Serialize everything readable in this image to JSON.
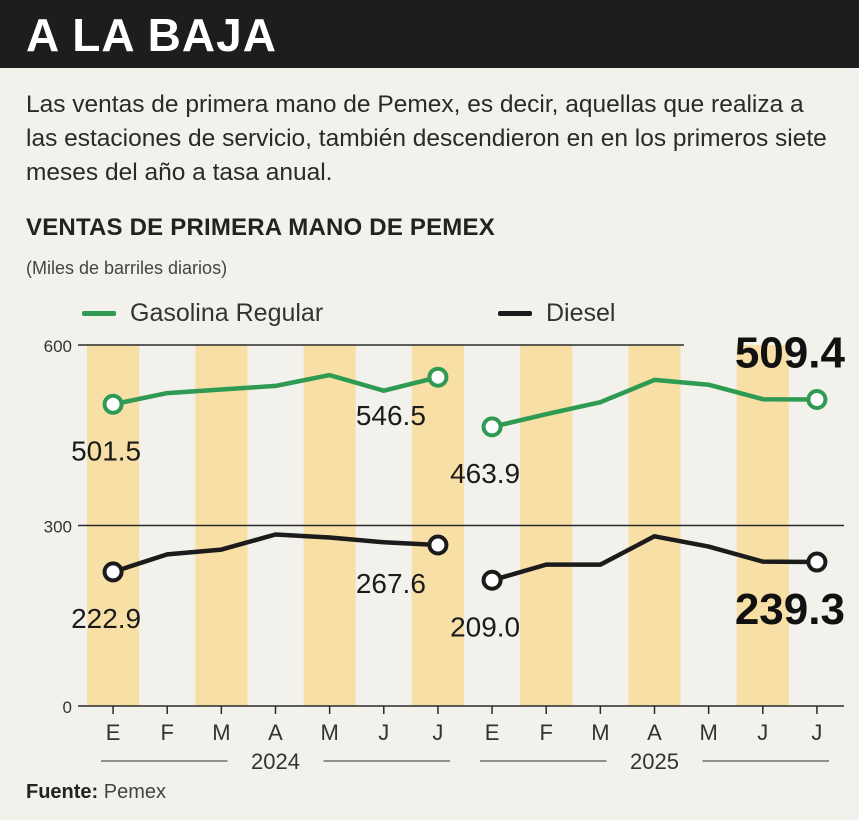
{
  "header": {
    "title": "A LA BAJA"
  },
  "intro": {
    "text": "Las ventas de primera mano de Pemex, es decir, aquellas que realiza a las estaciones de servicio, también descendieron en en los primeros siete meses del año a tasa anual."
  },
  "source": {
    "label": "Fuente:",
    "value": "Pemex"
  },
  "colors": {
    "gasolina": "#2e9a52",
    "diesel": "#1b1b1b",
    "stripe": "#f7dfa6",
    "header_bg": "#1d1d1d"
  },
  "chart_data": {
    "type": "line",
    "title": "VENTAS DE PRIMERA MANO DE PEMEX",
    "subtitle": "(Miles de barriles diarios)",
    "ylim": [
      0,
      600
    ],
    "yticks": [
      0,
      300,
      600
    ],
    "gridlines": [
      300,
      600
    ],
    "groups": [
      {
        "label": "2024",
        "categories": [
          "E",
          "F",
          "M",
          "A",
          "M",
          "J",
          "J"
        ]
      },
      {
        "label": "2025",
        "categories": [
          "E",
          "F",
          "M",
          "A",
          "M",
          "J",
          "J"
        ]
      }
    ],
    "series": [
      {
        "name": "Gasolina Regular",
        "color": "#2e9a52",
        "segments": [
          [
            501.5,
            520,
            526,
            532,
            550,
            524,
            546.5
          ],
          [
            463.9,
            485,
            505,
            542,
            534,
            510,
            509.4
          ]
        ]
      },
      {
        "name": "Diesel",
        "color": "#1b1b1b",
        "segments": [
          [
            222.9,
            252,
            260,
            285,
            280,
            272,
            267.6
          ],
          [
            209.0,
            235,
            235,
            282,
            265,
            240,
            239.3
          ]
        ]
      }
    ],
    "annotations": [
      {
        "label": "501.5",
        "series": 0,
        "segment": 0,
        "index": 0
      },
      {
        "label": "546.5",
        "series": 0,
        "segment": 0,
        "index": 6
      },
      {
        "label": "463.9",
        "series": 0,
        "segment": 1,
        "index": 0
      },
      {
        "label": "509.4",
        "series": 0,
        "segment": 1,
        "index": 6,
        "emphasis": true
      },
      {
        "label": "222.9",
        "series": 1,
        "segment": 0,
        "index": 0
      },
      {
        "label": "267.6",
        "series": 1,
        "segment": 0,
        "index": 6
      },
      {
        "label": "209.0",
        "series": 1,
        "segment": 1,
        "index": 0
      },
      {
        "label": "239.3",
        "series": 1,
        "segment": 1,
        "index": 6,
        "emphasis": true
      }
    ],
    "grid": true,
    "legend_position": "top"
  }
}
